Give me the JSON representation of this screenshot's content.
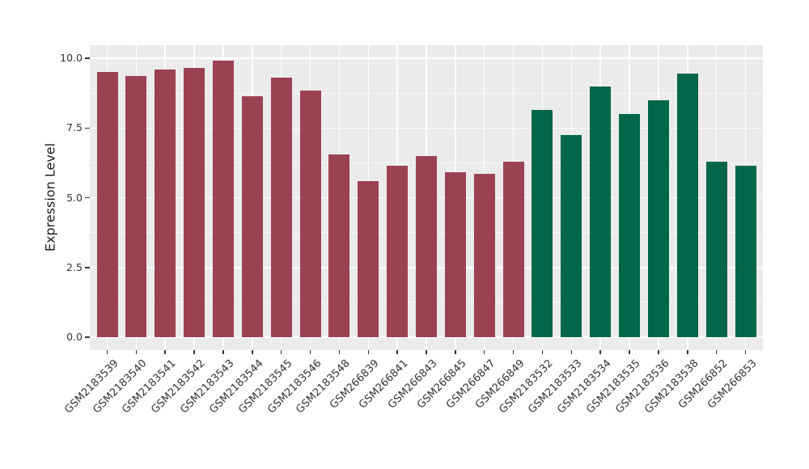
{
  "figure": {
    "background": "#FFFFFF",
    "title": ""
  },
  "chart_data": {
    "type": "bar",
    "title": "",
    "xlabel": "",
    "ylabel": "Expression Level",
    "ylim": [
      0,
      10.45
    ],
    "yticks": [
      0,
      2.5,
      5,
      7.5,
      10
    ],
    "ytick_labels": [
      "0.0",
      "2.5",
      "5.0",
      "7.5",
      "10.0"
    ],
    "minor_yticks": [
      1.25,
      3.75,
      6.25,
      8.75
    ],
    "grid": "major and minor horizontal + vertical lines at category centers, white on gray panel",
    "legend_position": "none",
    "panel_background": "#EBEBEB",
    "grid_color": "#FFFFFF",
    "axis_text_color": "#333333",
    "categories": [
      "GSM2183539",
      "GSM2183540",
      "GSM2183541",
      "GSM2183542",
      "GSM2183543",
      "GSM2183544",
      "GSM2183545",
      "GSM2183546",
      "GSM2183548",
      "GSM266839",
      "GSM266841",
      "GSM266843",
      "GSM266845",
      "GSM266847",
      "GSM266849",
      "GSM2183532",
      "GSM2183533",
      "GSM2183534",
      "GSM2183535",
      "GSM2183536",
      "GSM2183538",
      "GSM266852",
      "GSM266853"
    ],
    "values": [
      9.5,
      9.35,
      9.6,
      9.65,
      9.9,
      8.65,
      9.3,
      8.85,
      6.55,
      5.6,
      6.15,
      6.5,
      5.9,
      5.85,
      6.3,
      8.15,
      7.25,
      9.0,
      8.0,
      8.5,
      9.45,
      6.3,
      6.15
    ],
    "bar_groups": [
      0,
      0,
      0,
      0,
      0,
      0,
      0,
      0,
      0,
      0,
      0,
      0,
      0,
      0,
      0,
      1,
      1,
      1,
      1,
      1,
      1,
      1,
      1
    ],
    "group_colors": [
      "#9B4252",
      "#026649"
    ]
  }
}
